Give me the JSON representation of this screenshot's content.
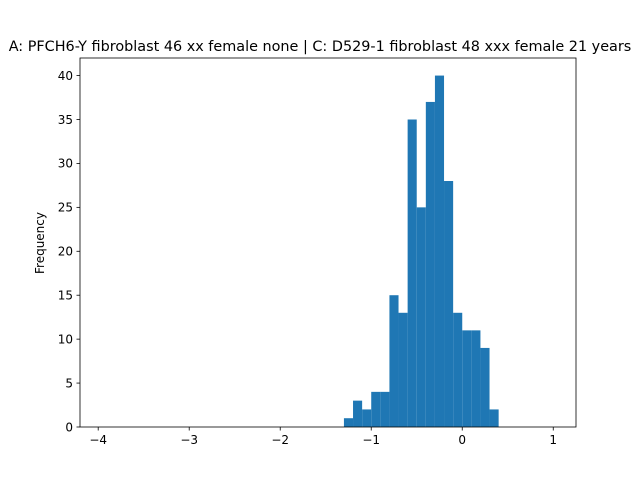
{
  "chart_data": {
    "type": "bar",
    "title": "A: PFCH6-Y fibroblast 46 xx female none | C: D529-1 fibroblast 48 xxx female 21 years",
    "xlabel": "",
    "ylabel": "Frequency",
    "xlim": [
      -4.2,
      1.25
    ],
    "ylim": [
      0,
      42
    ],
    "xticks": [
      -4,
      -3,
      -2,
      -1,
      0,
      1
    ],
    "xtick_labels": [
      "−4",
      "−3",
      "−2",
      "−1",
      "0",
      "1"
    ],
    "yticks": [
      0,
      5,
      10,
      15,
      20,
      25,
      30,
      35,
      40
    ],
    "ytick_labels": [
      "0",
      "5",
      "10",
      "15",
      "20",
      "25",
      "30",
      "35",
      "40"
    ],
    "bin_width": 0.1,
    "bins": [
      {
        "x0": -1.3,
        "x1": -1.2,
        "count": 1
      },
      {
        "x0": -1.2,
        "x1": -1.1,
        "count": 3
      },
      {
        "x0": -1.1,
        "x1": -1.0,
        "count": 2
      },
      {
        "x0": -1.0,
        "x1": -0.9,
        "count": 4
      },
      {
        "x0": -0.9,
        "x1": -0.8,
        "count": 4
      },
      {
        "x0": -0.8,
        "x1": -0.7,
        "count": 15
      },
      {
        "x0": -0.7,
        "x1": -0.6,
        "count": 13
      },
      {
        "x0": -0.6,
        "x1": -0.5,
        "count": 35
      },
      {
        "x0": -0.5,
        "x1": -0.4,
        "count": 25
      },
      {
        "x0": -0.4,
        "x1": -0.3,
        "count": 37
      },
      {
        "x0": -0.3,
        "x1": -0.2,
        "count": 40
      },
      {
        "x0": -0.2,
        "x1": -0.1,
        "count": 28
      },
      {
        "x0": -0.1,
        "x1": 0.0,
        "count": 13
      },
      {
        "x0": 0.0,
        "x1": 0.1,
        "count": 11
      },
      {
        "x0": 0.1,
        "x1": 0.2,
        "count": 11
      },
      {
        "x0": 0.2,
        "x1": 0.3,
        "count": 9
      },
      {
        "x0": 0.3,
        "x1": 0.4,
        "count": 2
      }
    ],
    "bar_color": "#1f77b4",
    "grid": false,
    "legend": "none"
  }
}
